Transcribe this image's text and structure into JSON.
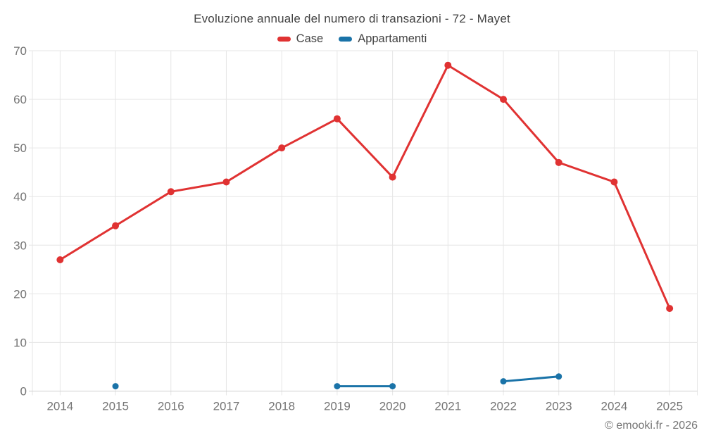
{
  "chart_data": {
    "type": "line",
    "title": "Evoluzione annuale del numero di transazioni - 72 - Mayet",
    "categories": [
      "2014",
      "2015",
      "2016",
      "2017",
      "2018",
      "2019",
      "2020",
      "2021",
      "2022",
      "2023",
      "2024",
      "2025"
    ],
    "series": [
      {
        "name": "Case",
        "color": "#e03232",
        "marker_radius": 5,
        "values": [
          27,
          34,
          41,
          43,
          50,
          56,
          44,
          67,
          60,
          47,
          43,
          17
        ]
      },
      {
        "name": "Appartamenti",
        "color": "#1a73a8",
        "marker_radius": 4.5,
        "values": [
          null,
          1,
          null,
          null,
          null,
          1,
          1,
          null,
          2,
          3,
          null,
          null
        ]
      }
    ],
    "ylim": [
      0,
      70
    ],
    "yticks": [
      0,
      10,
      20,
      30,
      40,
      50,
      60,
      70
    ],
    "xlabel": "",
    "ylabel": "",
    "grid": true,
    "legend_position": "top",
    "colors": {
      "gridline": "#e6e6e6",
      "axis_line": "#cfcfcf",
      "tick_label": "#757575",
      "title_text": "#424242",
      "background": "#ffffff"
    }
  },
  "footer": {
    "credit": "© emooki.fr - 2026"
  }
}
